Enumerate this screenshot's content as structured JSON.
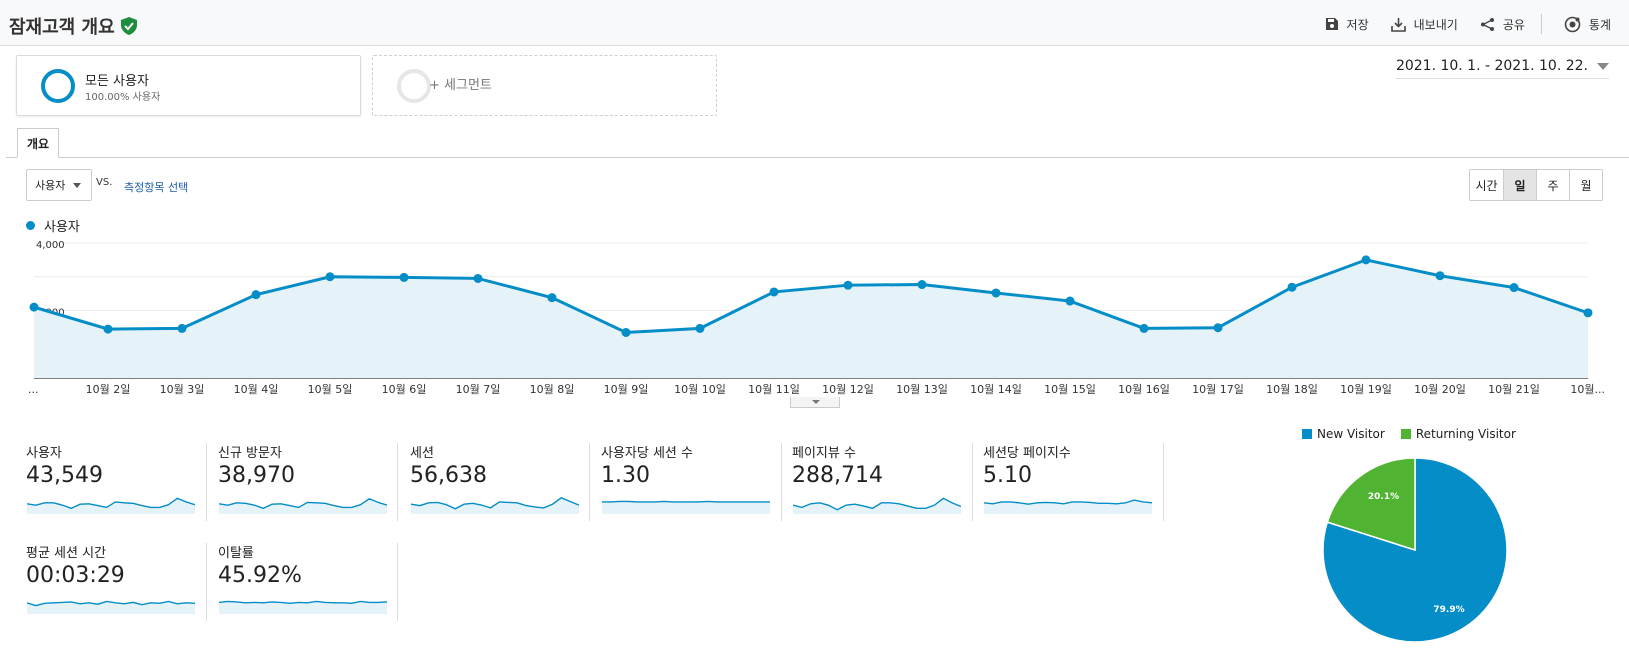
{
  "header": {
    "title": "잠재고객 개요",
    "actions": {
      "save": "저장",
      "export": "내보내기",
      "share": "공유",
      "insights": "통계"
    }
  },
  "segments": {
    "primary": {
      "name": "모든 사용자",
      "sub": "100.00% 사용자"
    },
    "add_label": "+ 세그먼트"
  },
  "date_range": "2021. 10. 1. - 2021. 10. 22.",
  "tabs": {
    "overview": "개요"
  },
  "metric_selector": {
    "selected": "사용자",
    "vs": "VS.",
    "choose": "측정항목 선택"
  },
  "time_buttons": [
    "시간",
    "일",
    "주",
    "월"
  ],
  "colors": {
    "accent": "#058dc7",
    "returning": "#50b432",
    "area_fill": "#e5f3f9"
  },
  "chart_data": {
    "type": "line",
    "series": [
      {
        "name": "사용자",
        "values": [
          2100,
          1450,
          1470,
          2470,
          3000,
          2980,
          2950,
          2380,
          1350,
          1470,
          2550,
          2750,
          2770,
          2520,
          2280,
          1470,
          1490,
          2690,
          3500,
          3030,
          2680,
          1930
        ]
      }
    ],
    "x_labels": [
      "...",
      "10월 2일",
      "10월 3일",
      "10월 4일",
      "10월 5일",
      "10월 6일",
      "10월 7일",
      "10월 8일",
      "10월 9일",
      "10월 10일",
      "10월 11일",
      "10월 12일",
      "10월 13일",
      "10월 14일",
      "10월 15일",
      "10월 16일",
      "10월 17일",
      "10월 18일",
      "10월 19일",
      "10월 20일",
      "10월 21일",
      "10월..."
    ],
    "y_ticks": [
      "4,000",
      "2,000"
    ],
    "y_tick_values": [
      4000,
      2000
    ],
    "ylim": [
      0,
      4000
    ],
    "grid": true,
    "legend": "top-left"
  },
  "kpis": [
    {
      "label": "사용자",
      "value": "43,549",
      "spark": [
        48,
        45,
        50,
        50,
        45,
        38,
        47,
        48,
        44,
        40,
        52,
        50,
        49,
        44,
        40,
        40,
        46,
        60,
        52,
        46
      ]
    },
    {
      "label": "신규 방문자",
      "value": "38,970",
      "spark": [
        48,
        45,
        50,
        49,
        45,
        38,
        47,
        48,
        44,
        40,
        51,
        50,
        49,
        44,
        40,
        40,
        46,
        59,
        51,
        45
      ]
    },
    {
      "label": "세션",
      "value": "56,638",
      "spark": [
        47,
        44,
        50,
        51,
        46,
        37,
        47,
        49,
        45,
        39,
        52,
        51,
        50,
        44,
        41,
        39,
        47,
        61,
        53,
        45
      ]
    },
    {
      "label": "사용자당 세션 수",
      "value": "1.30",
      "spark": [
        52,
        52,
        53,
        53,
        52,
        52,
        52,
        53,
        52,
        52,
        52,
        52,
        53,
        52,
        52,
        52,
        52,
        52,
        52,
        52
      ]
    },
    {
      "label": "페이지뷰 수",
      "value": "288,714",
      "spark": [
        45,
        40,
        48,
        50,
        45,
        35,
        45,
        47,
        43,
        38,
        50,
        50,
        48,
        43,
        38,
        38,
        45,
        60,
        50,
        42
      ]
    },
    {
      "label": "세션당 페이지수",
      "value": "5.10",
      "spark": [
        50,
        48,
        52,
        52,
        50,
        47,
        50,
        51,
        50,
        48,
        52,
        52,
        51,
        49,
        49,
        48,
        50,
        56,
        52,
        50
      ]
    },
    {
      "label": "평균 세션 시간",
      "value": "00:03:29",
      "spark": [
        50,
        44,
        49,
        50,
        51,
        52,
        48,
        50,
        47,
        53,
        50,
        48,
        51,
        46,
        50,
        49,
        53,
        48,
        50,
        49
      ]
    },
    {
      "label": "이탈률",
      "value": "45.92%",
      "spark": [
        51,
        53,
        52,
        50,
        51,
        50,
        52,
        51,
        49,
        51,
        50,
        53,
        51,
        50,
        50,
        49,
        53,
        51,
        51,
        52
      ]
    }
  ],
  "pie": {
    "slices": [
      {
        "name": "New Visitor",
        "value": 79.9,
        "label": "79.9%",
        "color": "#058dc7"
      },
      {
        "name": "Returning Visitor",
        "value": 20.1,
        "label": "20.1%",
        "color": "#50b432"
      }
    ]
  }
}
